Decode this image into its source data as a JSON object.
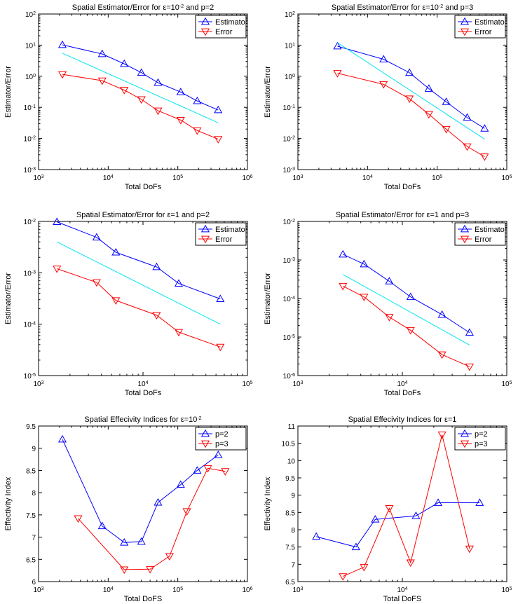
{
  "chart_data": [
    {
      "type": "line",
      "xscale": "log",
      "yscale": "log",
      "title": "Spatial Estimator/Error for ε=10^{-2} and p=2",
      "xlabel": "Total DoFs",
      "ylabel": "Estimator/Error",
      "xlim": [
        1000,
        1000000
      ],
      "ylim": [
        0.001,
        100
      ],
      "xticks": [
        3,
        4,
        5,
        6
      ],
      "yticks": [
        -3,
        -2,
        -1,
        0,
        1,
        2
      ],
      "legend": "top-right",
      "series": [
        {
          "name": "Estimator",
          "color": "#0000ff",
          "marker": "triangle-up",
          "x": [
            2200,
            8200,
            17000,
            30000,
            52000,
            110000,
            190000,
            380000
          ],
          "y": [
            10.2,
            5.2,
            2.5,
            1.3,
            0.62,
            0.31,
            0.16,
            0.082
          ]
        },
        {
          "name": "Error",
          "color": "#ff0000",
          "marker": "triangle-down",
          "x": [
            2200,
            8200,
            17000,
            30000,
            52000,
            110000,
            190000,
            380000
          ],
          "y": [
            1.15,
            0.72,
            0.36,
            0.18,
            0.078,
            0.039,
            0.018,
            0.0095
          ]
        },
        {
          "name": "",
          "color": "#00e5ee",
          "marker": "none",
          "x": [
            2200,
            380000
          ],
          "y": [
            5.5,
            0.032
          ]
        }
      ]
    },
    {
      "type": "line",
      "xscale": "log",
      "yscale": "log",
      "title": "Spatial Estimator/Error for ε=10^{-2} and p=3",
      "xlabel": "Total DoFs",
      "ylabel": "Estimator/Error",
      "xlim": [
        1000,
        1000000
      ],
      "ylim": [
        0.001,
        100
      ],
      "xticks": [
        3,
        4,
        5,
        6
      ],
      "yticks": [
        -3,
        -2,
        -1,
        0,
        1,
        2
      ],
      "legend": "top-right",
      "series": [
        {
          "name": "Estimator",
          "color": "#0000ff",
          "marker": "triangle-up",
          "x": [
            3700,
            17000,
            40000,
            76000,
            135000,
            270000,
            480000
          ],
          "y": [
            9.2,
            3.5,
            1.3,
            0.4,
            0.15,
            0.047,
            0.021
          ]
        },
        {
          "name": "Error",
          "color": "#ff0000",
          "marker": "triangle-down",
          "x": [
            3700,
            17000,
            40000,
            76000,
            135000,
            270000,
            480000
          ],
          "y": [
            1.25,
            0.55,
            0.19,
            0.06,
            0.02,
            0.0055,
            0.0026
          ]
        },
        {
          "name": "",
          "color": "#00e5ee",
          "marker": "none",
          "x": [
            3700,
            480000
          ],
          "y": [
            12,
            0.0095
          ]
        }
      ]
    },
    {
      "type": "line",
      "xscale": "log",
      "yscale": "log",
      "title": "Spatial Estimator/Error for ε=1 and p=2",
      "xlabel": "Total DoFs",
      "ylabel": "Estimator/Error",
      "xlim": [
        1000,
        100000
      ],
      "ylim": [
        1e-05,
        0.01
      ],
      "xticks": [
        3,
        4,
        5
      ],
      "yticks": [
        -5,
        -4,
        -3,
        -2
      ],
      "legend": "top-right",
      "series": [
        {
          "name": "Estimator",
          "color": "#0000ff",
          "marker": "triangle-up",
          "x": [
            1500,
            3600,
            5500,
            13500,
            22000,
            55000
          ],
          "y": [
            0.0098,
            0.0049,
            0.0025,
            0.0013,
            0.00062,
            0.00031
          ]
        },
        {
          "name": "Error",
          "color": "#ff0000",
          "marker": "triangle-down",
          "x": [
            1500,
            3600,
            5500,
            13500,
            22000,
            55000
          ],
          "y": [
            0.0012,
            0.00065,
            0.00029,
            0.00015,
            7e-05,
            3.6e-05
          ]
        },
        {
          "name": "",
          "color": "#00e5ee",
          "marker": "none",
          "x": [
            1500,
            55000
          ],
          "y": [
            0.004,
            0.0001
          ]
        }
      ]
    },
    {
      "type": "line",
      "xscale": "log",
      "yscale": "log",
      "title": "Spatial Estimator/Error for ε=1 and p=3",
      "xlabel": "Total DoFs",
      "ylabel": "Estimator/Error",
      "xlim": [
        1000,
        100000
      ],
      "ylim": [
        1e-06,
        0.01
      ],
      "xticks": [
        3,
        4,
        5
      ],
      "yticks": [
        -6,
        -5,
        -4,
        -3,
        -2
      ],
      "legend": "top-right",
      "series": [
        {
          "name": "Estimator",
          "color": "#0000ff",
          "marker": "triangle-up",
          "x": [
            2700,
            4300,
            7500,
            12000,
            24000,
            44000
          ],
          "y": [
            0.0014,
            0.00078,
            0.00028,
            0.00011,
            3.8e-05,
            1.3e-05
          ]
        },
        {
          "name": "Error",
          "color": "#ff0000",
          "marker": "triangle-down",
          "x": [
            2700,
            4300,
            7500,
            12000,
            24000,
            44000
          ],
          "y": [
            0.00021,
            0.00011,
            3.3e-05,
            1.5e-05,
            3.5e-06,
            1.7e-06
          ]
        },
        {
          "name": "",
          "color": "#00e5ee",
          "marker": "none",
          "x": [
            2700,
            44000
          ],
          "y": [
            0.00042,
            6.2e-06
          ]
        }
      ]
    },
    {
      "type": "line",
      "xscale": "log",
      "yscale": "linear",
      "title": "Spatial Effecivity Indices for ε=10^{-2}",
      "xlabel": "Total DoFS",
      "ylabel": "Effectivity Index",
      "xlim": [
        1000,
        1000000
      ],
      "ylim": [
        6,
        9.5
      ],
      "xticks": [
        3,
        4,
        5,
        6
      ],
      "ytick_labels": [
        "6",
        "6.5",
        "7",
        "7.5",
        "8",
        "8.5",
        "9",
        "9.5"
      ],
      "ytick_values": [
        6,
        6.5,
        7,
        7.5,
        8,
        8.5,
        9,
        9.5
      ],
      "legend": "top-right",
      "series": [
        {
          "name": "p=2",
          "color": "#0000ff",
          "marker": "triangle-up",
          "x": [
            2200,
            8200,
            17000,
            30000,
            52000,
            110000,
            190000,
            380000
          ],
          "y": [
            9.2,
            7.25,
            6.88,
            6.9,
            7.78,
            8.18,
            8.5,
            8.85
          ]
        },
        {
          "name": "p=3",
          "color": "#ff0000",
          "marker": "triangle-down",
          "x": [
            3700,
            17000,
            40000,
            76000,
            135000,
            270000,
            480000
          ],
          "y": [
            7.42,
            6.27,
            6.28,
            6.57,
            7.58,
            8.55,
            8.48
          ]
        }
      ]
    },
    {
      "type": "line",
      "xscale": "log",
      "yscale": "linear",
      "title": "Spatial Effecivity Indices for ε=1",
      "xlabel": "Total DoFS",
      "ylabel": "Effectivity Index",
      "xlim": [
        1000,
        100000
      ],
      "ylim": [
        6.5,
        11
      ],
      "xticks": [
        3,
        4,
        5
      ],
      "ytick_labels": [
        "6.5",
        "7",
        "7.5",
        "8",
        "8.5",
        "9",
        "9.5",
        "10",
        "10.5",
        "11"
      ],
      "ytick_values": [
        6.5,
        7,
        7.5,
        8,
        8.5,
        9,
        9.5,
        10,
        10.5,
        11
      ],
      "legend": "top-right",
      "series": [
        {
          "name": "p=2",
          "color": "#0000ff",
          "marker": "triangle-up",
          "x": [
            1500,
            3600,
            5500,
            13500,
            22000,
            55000
          ],
          "y": [
            7.8,
            7.5,
            8.3,
            8.4,
            8.78,
            8.78
          ]
        },
        {
          "name": "p=3",
          "color": "#ff0000",
          "marker": "triangle-down",
          "x": [
            2700,
            4300,
            7500,
            12000,
            24000,
            44000
          ],
          "y": [
            6.65,
            6.92,
            8.62,
            7.05,
            10.75,
            7.45
          ]
        }
      ]
    }
  ]
}
